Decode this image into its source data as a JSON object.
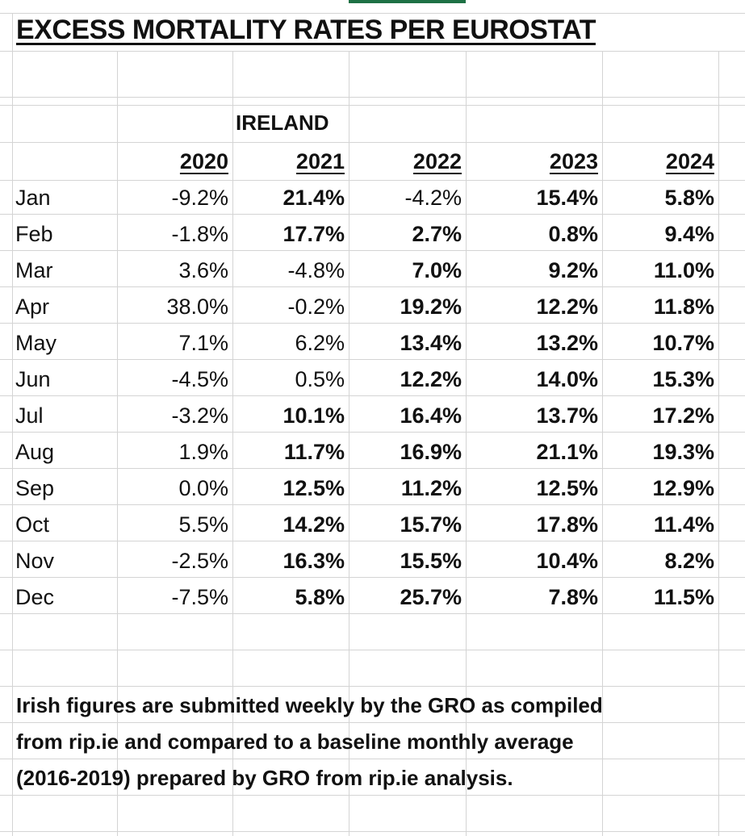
{
  "title": "EXCESS MORTALITY RATES PER EUROSTAT",
  "country": "IRELAND",
  "years": [
    "2020",
    "2021",
    "2022",
    "2023",
    "2024"
  ],
  "rows": [
    {
      "month": "Jan",
      "values": [
        "-9.2%",
        "21.4%",
        "-4.2%",
        "15.4%",
        "5.8%"
      ],
      "bold": [
        false,
        true,
        false,
        true,
        true
      ]
    },
    {
      "month": "Feb",
      "values": [
        "-1.8%",
        "17.7%",
        "2.7%",
        "0.8%",
        "9.4%"
      ],
      "bold": [
        false,
        true,
        true,
        true,
        true
      ]
    },
    {
      "month": "Mar",
      "values": [
        "3.6%",
        "-4.8%",
        "7.0%",
        "9.2%",
        "11.0%"
      ],
      "bold": [
        false,
        false,
        true,
        true,
        true
      ]
    },
    {
      "month": "Apr",
      "values": [
        "38.0%",
        "-0.2%",
        "19.2%",
        "12.2%",
        "11.8%"
      ],
      "bold": [
        false,
        false,
        true,
        true,
        true
      ]
    },
    {
      "month": "May",
      "values": [
        "7.1%",
        "6.2%",
        "13.4%",
        "13.2%",
        "10.7%"
      ],
      "bold": [
        false,
        false,
        true,
        true,
        true
      ]
    },
    {
      "month": "Jun",
      "values": [
        "-4.5%",
        "0.5%",
        "12.2%",
        "14.0%",
        "15.3%"
      ],
      "bold": [
        false,
        false,
        true,
        true,
        true
      ]
    },
    {
      "month": "Jul",
      "values": [
        "-3.2%",
        "10.1%",
        "16.4%",
        "13.7%",
        "17.2%"
      ],
      "bold": [
        false,
        true,
        true,
        true,
        true
      ]
    },
    {
      "month": "Aug",
      "values": [
        "1.9%",
        "11.7%",
        "16.9%",
        "21.1%",
        "19.3%"
      ],
      "bold": [
        false,
        true,
        true,
        true,
        true
      ]
    },
    {
      "month": "Sep",
      "values": [
        "0.0%",
        "12.5%",
        "11.2%",
        "12.5%",
        "12.9%"
      ],
      "bold": [
        false,
        true,
        true,
        true,
        true
      ]
    },
    {
      "month": "Oct",
      "values": [
        "5.5%",
        "14.2%",
        "15.7%",
        "17.8%",
        "11.4%"
      ],
      "bold": [
        false,
        true,
        true,
        true,
        true
      ]
    },
    {
      "month": "Nov",
      "values": [
        "-2.5%",
        "16.3%",
        "15.5%",
        "10.4%",
        "8.2%"
      ],
      "bold": [
        false,
        true,
        true,
        true,
        true
      ]
    },
    {
      "month": "Dec",
      "values": [
        "-7.5%",
        "5.8%",
        "25.7%",
        "7.8%",
        "11.5%"
      ],
      "bold": [
        false,
        true,
        true,
        true,
        true
      ]
    }
  ],
  "note_lines": [
    "Irish figures are submitted weekly by the GRO as compiled",
    "from rip.ie and compared to a baseline monthly average",
    "(2016-2019) prepared by GRO from rip.ie analysis."
  ]
}
